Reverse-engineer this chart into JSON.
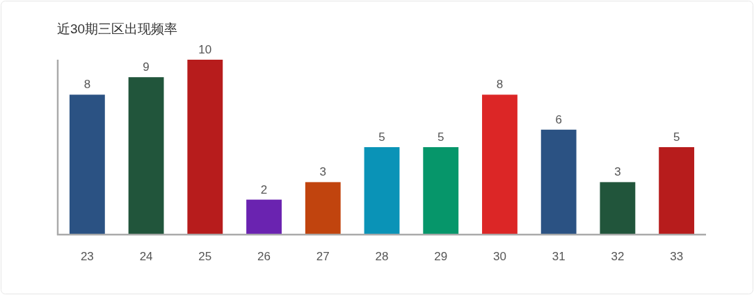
{
  "chart_data": {
    "type": "bar",
    "title": "近30期三区出现频率",
    "categories": [
      "23",
      "24",
      "25",
      "26",
      "27",
      "28",
      "29",
      "30",
      "31",
      "32",
      "33"
    ],
    "values": [
      8,
      9,
      10,
      2,
      3,
      5,
      5,
      8,
      6,
      3,
      5
    ],
    "colors": [
      "#2b5283",
      "#21553b",
      "#b71c1c",
      "#6a23b0",
      "#c1440e",
      "#0a93b7",
      "#06966a",
      "#dc2626",
      "#2b5283",
      "#21553b",
      "#b71c1c"
    ],
    "data_labels": true
  }
}
